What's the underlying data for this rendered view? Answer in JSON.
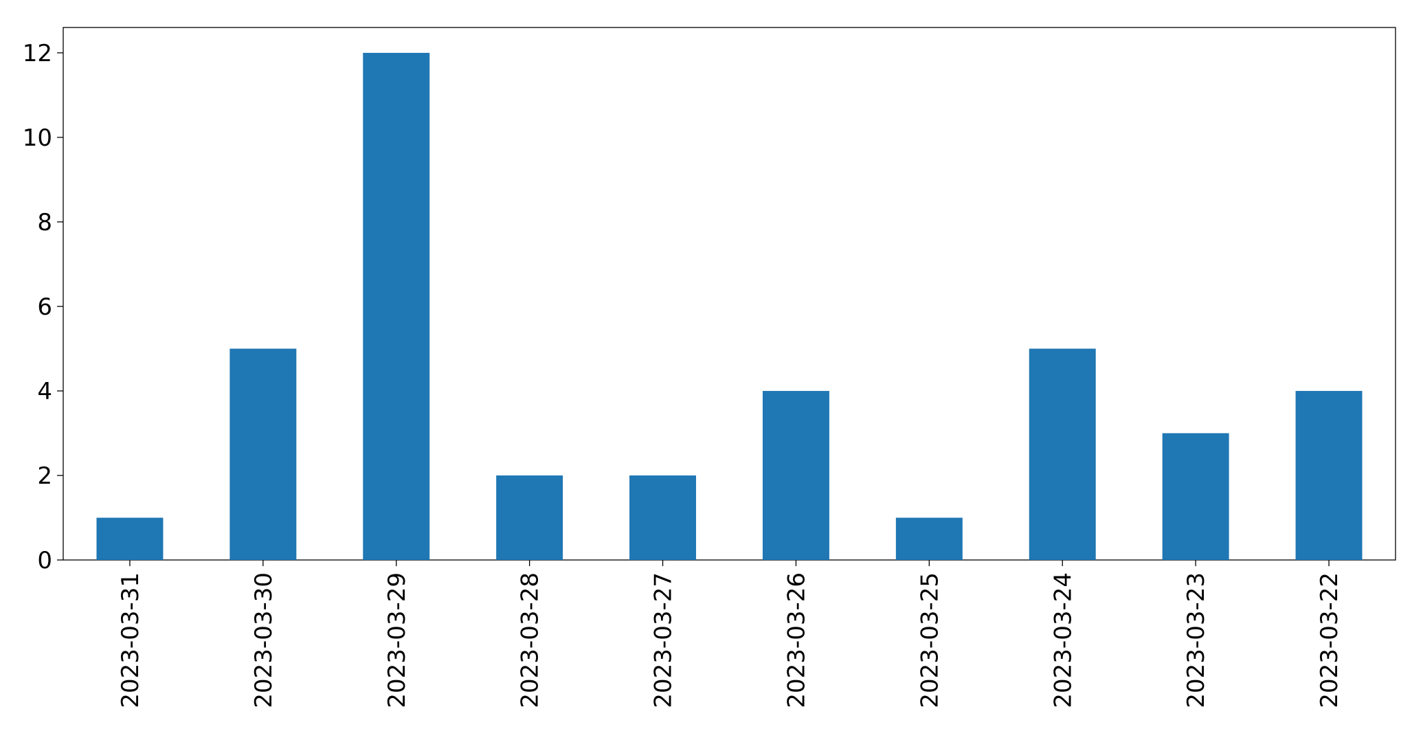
{
  "chart_data": {
    "type": "bar",
    "categories": [
      "2023-03-31",
      "2023-03-30",
      "2023-03-29",
      "2023-03-28",
      "2023-03-27",
      "2023-03-26",
      "2023-03-25",
      "2023-03-24",
      "2023-03-23",
      "2023-03-22"
    ],
    "values": [
      1,
      5,
      12,
      2,
      2,
      4,
      1,
      5,
      3,
      4
    ],
    "color": "#1f77b4",
    "ylim": [
      0,
      12.6
    ],
    "yticks": [
      0,
      2,
      4,
      6,
      8,
      10,
      12
    ],
    "grid": false
  }
}
